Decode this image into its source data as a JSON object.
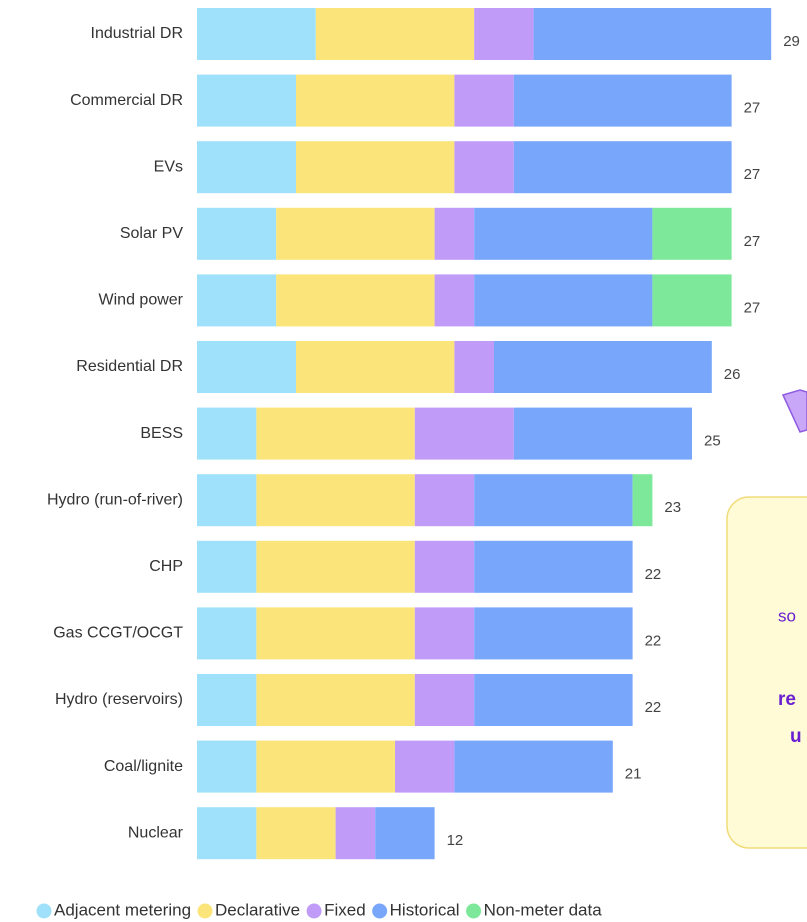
{
  "chart_data": {
    "type": "stacked_barh",
    "categories": [
      "Industrial DR",
      "Commercial DR",
      "EVs",
      "Solar PV",
      "Wind power",
      "Residential DR",
      "BESS",
      "Hydro (run-of-river)",
      "CHP",
      "Gas CCGT/OCGT",
      "Hydro (reservoirs)",
      "Coal/lignite",
      "Nuclear"
    ],
    "series": [
      {
        "name": "Adjacent metering",
        "color": "#9fe1fa",
        "values": [
          6,
          5,
          5,
          4,
          4,
          5,
          3,
          3,
          3,
          3,
          3,
          3,
          3
        ]
      },
      {
        "name": "Declarative",
        "color": "#fbe57a",
        "values": [
          8,
          8,
          8,
          8,
          8,
          8,
          8,
          8,
          8,
          8,
          8,
          7,
          4
        ]
      },
      {
        "name": "Fixed",
        "color": "#c09cf8",
        "values": [
          3,
          3,
          3,
          2,
          2,
          2,
          5,
          3,
          3,
          3,
          3,
          3,
          2
        ]
      },
      {
        "name": "Historical",
        "color": "#78a6fb",
        "values": [
          12,
          11,
          11,
          9,
          9,
          11,
          9,
          8,
          8,
          8,
          8,
          8,
          3
        ]
      },
      {
        "name": "Non-meter data",
        "color": "#7ee89a",
        "values": [
          0,
          0,
          0,
          4,
          4,
          0,
          0,
          1,
          0,
          0,
          0,
          0,
          0
        ]
      }
    ],
    "totals": [
      29,
      27,
      27,
      27,
      27,
      26,
      25,
      23,
      22,
      22,
      22,
      21,
      12
    ],
    "annotations": [
      "so",
      "re",
      "u"
    ]
  }
}
